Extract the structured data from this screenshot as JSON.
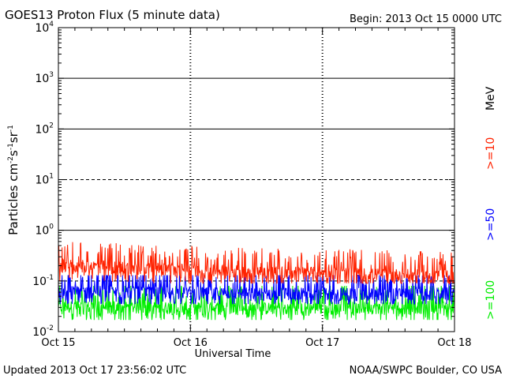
{
  "chart_data": {
    "type": "line",
    "title": "GOES13 Proton Flux (5 minute data)",
    "begin": "Begin: 2013 Oct 15 0000 UTC",
    "ylabel_main": "Particles cm",
    "ylabel_sup1": "-2",
    "ylabel_mid1": "s",
    "ylabel_sup2": "-1",
    "ylabel_mid2": "sr",
    "ylabel_sup3": "-1",
    "xlabel": "Universal Time",
    "yscale": "log",
    "ylim": [
      0.01,
      10000
    ],
    "y_ticks": [
      {
        "base": "10",
        "exp": "-2"
      },
      {
        "base": "10",
        "exp": "-1"
      },
      {
        "base": "10",
        "exp": "0"
      },
      {
        "base": "10",
        "exp": "1"
      },
      {
        "base": "10",
        "exp": "2"
      },
      {
        "base": "10",
        "exp": "3"
      },
      {
        "base": "10",
        "exp": "4"
      }
    ],
    "x_ticks": [
      "Oct 15",
      "Oct 16",
      "Oct 17",
      "Oct 18"
    ],
    "x_days": [
      0,
      3
    ],
    "legend": [
      {
        "label": ">=10",
        "color": "#ff2200"
      },
      {
        "label": ">=50",
        "color": "#0000ff"
      },
      {
        "label": ">=100",
        "color": "#00ee00"
      }
    ],
    "legend_unit": "MeV",
    "series": [
      {
        "name": ">=10 MeV",
        "color": "#ff2200",
        "base": 0.16,
        "low": 0.09,
        "high": 0.6,
        "trend": [
          [
            0,
            0.2
          ],
          [
            0.5,
            0.18
          ],
          [
            1,
            0.16
          ],
          [
            2,
            0.14
          ],
          [
            3,
            0.12
          ]
        ]
      },
      {
        "name": ">=50 MeV",
        "color": "#0000ff",
        "base": 0.055,
        "low": 0.035,
        "high": 0.13,
        "trend": [
          [
            0,
            0.06
          ],
          [
            1.5,
            0.055
          ],
          [
            3,
            0.055
          ]
        ]
      },
      {
        "name": ">=100 MeV",
        "color": "#00ee00",
        "base": 0.03,
        "low": 0.017,
        "high": 0.08,
        "trend": [
          [
            0,
            0.03
          ],
          [
            1.5,
            0.028
          ],
          [
            3,
            0.03
          ]
        ]
      }
    ]
  },
  "footer": {
    "updated": "Updated 2013 Oct 17 23:56:02 UTC",
    "source": "NOAA/SWPC Boulder, CO USA"
  }
}
